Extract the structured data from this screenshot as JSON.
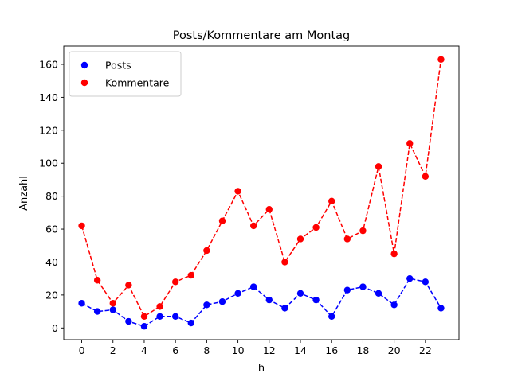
{
  "chart_data": {
    "type": "line",
    "title": "Posts/Kommentare am Montag",
    "xlabel": "h",
    "ylabel": "Anzahl",
    "xlim": [
      -1.15,
      24.15
    ],
    "ylim": [
      -7.1,
      171.1
    ],
    "xticks": [
      0,
      2,
      4,
      6,
      8,
      10,
      12,
      14,
      16,
      18,
      20,
      22
    ],
    "yticks": [
      0,
      20,
      40,
      60,
      80,
      100,
      120,
      140,
      160
    ],
    "grid": false,
    "legend_position": "top-left",
    "x": [
      0,
      1,
      2,
      3,
      4,
      5,
      6,
      7,
      8,
      9,
      10,
      11,
      12,
      13,
      14,
      15,
      16,
      17,
      18,
      19,
      20,
      21,
      22,
      23
    ],
    "series": [
      {
        "name": "Posts",
        "color": "#0000ff",
        "line_style": "dashed",
        "marker": "circle",
        "values": [
          15,
          10,
          11,
          4,
          1,
          7,
          7,
          3,
          14,
          16,
          21,
          25,
          17,
          12,
          21,
          17,
          7,
          23,
          25,
          21,
          14,
          30,
          28,
          12
        ]
      },
      {
        "name": "Kommentare",
        "color": "#ff0000",
        "line_style": "dashed",
        "marker": "circle",
        "values": [
          62,
          29,
          15,
          26,
          7,
          13,
          28,
          32,
          47,
          65,
          83,
          62,
          72,
          40,
          54,
          61,
          77,
          54,
          59,
          98,
          45,
          112,
          92,
          163
        ]
      }
    ]
  }
}
